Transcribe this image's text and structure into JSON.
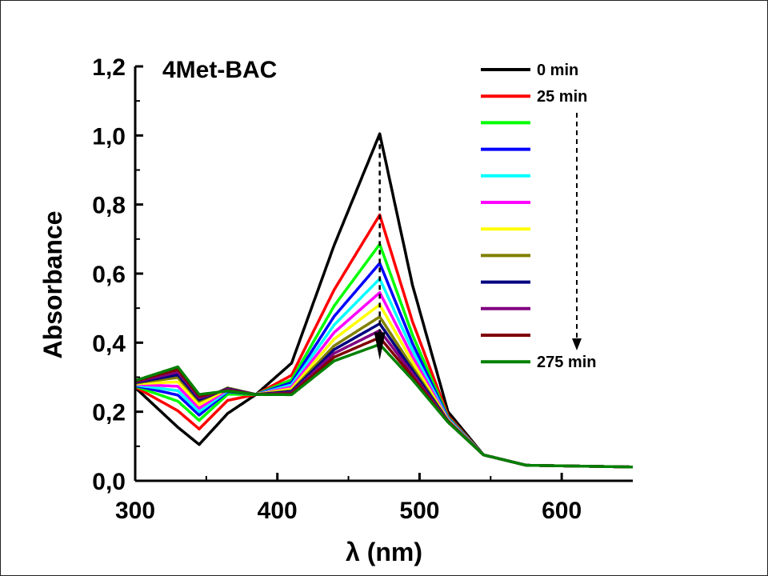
{
  "chart_data": {
    "type": "line",
    "title": "4Met-BAC",
    "xlabel": "λ (nm)",
    "ylabel": "Absorbance",
    "xlim": [
      300,
      650
    ],
    "ylim": [
      0,
      1.2
    ],
    "xticks": [
      300,
      400,
      500,
      600
    ],
    "yticks": [
      0.0,
      0.2,
      0.4,
      0.6,
      0.8,
      1.0,
      1.2
    ],
    "ytick_labels": [
      "0,0",
      "0,2",
      "0,4",
      "0,6",
      "0,8",
      "1,0",
      "1,2"
    ],
    "grid": false,
    "legend_position": "top-right",
    "legend_labels": [
      "0 min",
      "25 min",
      "",
      "",
      "",
      "",
      "",
      "",
      "",
      "",
      "",
      "275 min"
    ],
    "annotation": "arrow indicating decrease over time",
    "series": [
      {
        "name": "0 min",
        "color": "#000000",
        "min_345": 0.105,
        "peak": 1.005
      },
      {
        "name": "25 min",
        "color": "#ff0000",
        "min_345": 0.15,
        "peak": 0.77
      },
      {
        "name": "",
        "color": "#00ff00",
        "min_345": 0.175,
        "peak": 0.685
      },
      {
        "name": "",
        "color": "#0000ff",
        "min_345": 0.19,
        "peak": 0.63
      },
      {
        "name": "",
        "color": "#00ffff",
        "min_345": 0.2,
        "peak": 0.585
      },
      {
        "name": "",
        "color": "#ff00ff",
        "min_345": 0.21,
        "peak": 0.545
      },
      {
        "name": "",
        "color": "#ffff00",
        "min_345": 0.22,
        "peak": 0.51
      },
      {
        "name": "",
        "color": "#808000",
        "min_345": 0.23,
        "peak": 0.475
      },
      {
        "name": "",
        "color": "#000080",
        "min_345": 0.235,
        "peak": 0.455
      },
      {
        "name": "",
        "color": "#800080",
        "min_345": 0.24,
        "peak": 0.435
      },
      {
        "name": "",
        "color": "#800000",
        "min_345": 0.245,
        "peak": 0.415
      },
      {
        "name": "275 min",
        "color": "#008000",
        "min_345": 0.25,
        "peak": 0.395
      }
    ]
  }
}
